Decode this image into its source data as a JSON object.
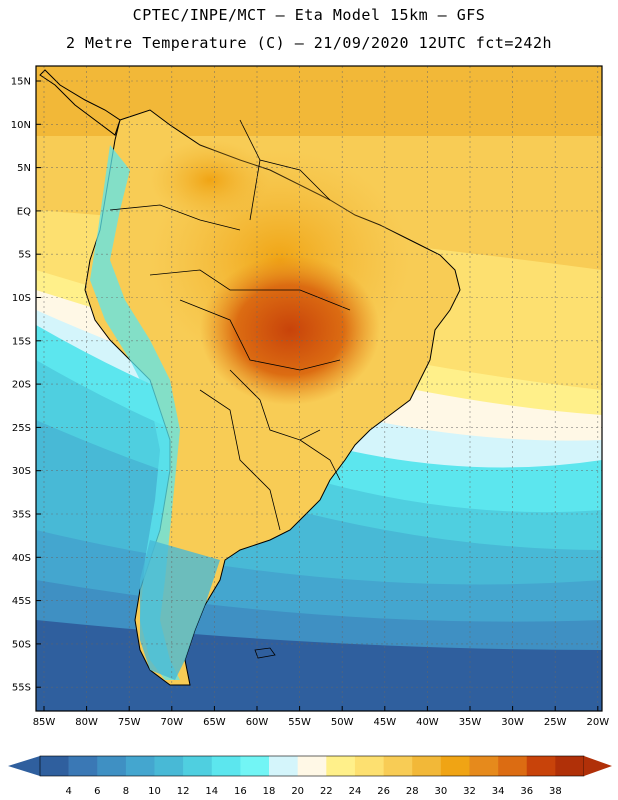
{
  "title_line1": "CPTEC/INPE/MCT –  Eta Model 15km – GFS",
  "title_line2": "2 Metre Temperature (C) – 21/09/2020 12UTC fct=242h",
  "lat_labels": [
    "15N",
    "10N",
    "5N",
    "EQ",
    "5S",
    "10S",
    "15S",
    "20S",
    "25S",
    "30S",
    "35S",
    "40S",
    "45S",
    "50S",
    "55S"
  ],
  "lon_labels": [
    "85W",
    "80W",
    "75W",
    "70W",
    "65W",
    "60W",
    "55W",
    "50W",
    "45W",
    "40W",
    "35W",
    "30W",
    "25W",
    "20W"
  ],
  "colorbar": {
    "labels": [
      "4",
      "6",
      "8",
      "10",
      "12",
      "14",
      "16",
      "18",
      "20",
      "22",
      "24",
      "26",
      "28",
      "30",
      "32",
      "34",
      "36",
      "38"
    ],
    "colors": [
      "#2f5f9e",
      "#3a78b5",
      "#3f90c3",
      "#44a6cf",
      "#48b9d6",
      "#4fcfe0",
      "#5ce6ee",
      "#72f5f5",
      "#d4f5fb",
      "#fff8e6",
      "#fff08a",
      "#fde070",
      "#f8cc55",
      "#f2b838",
      "#f0a414",
      "#e68a1c",
      "#dc6c12",
      "#c8430a",
      "#b03008"
    ],
    "low_color": "#2f5f9e",
    "high_color": "#b03008"
  }
}
